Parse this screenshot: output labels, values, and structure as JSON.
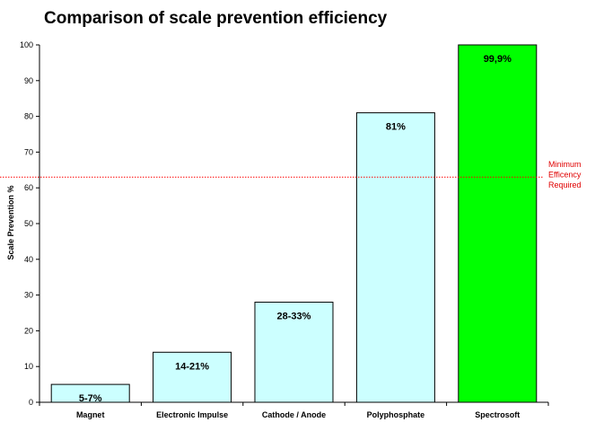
{
  "chart_data": {
    "type": "bar",
    "title": "Comparison of scale prevention efficiency",
    "xlabel": "",
    "ylabel": "Scale Prevention %",
    "ylim": [
      0,
      100
    ],
    "yticks": [
      0,
      10,
      20,
      30,
      40,
      50,
      60,
      70,
      80,
      90,
      100
    ],
    "categories": [
      "Magnet",
      "Electronic Impulse",
      "Cathode / Anode",
      "Polyphosphate",
      "Spectrosoft"
    ],
    "values": [
      5,
      14,
      28,
      81,
      100
    ],
    "data_labels": [
      "5-7%",
      "14-21%",
      "28-33%",
      "81%",
      "99,9%"
    ],
    "bar_colors": [
      "#ccffff",
      "#ccffff",
      "#ccffff",
      "#ccffff",
      "#00ff00"
    ],
    "grid": false,
    "reference_line": {
      "value": 63,
      "color": "#ff0000",
      "style": "dotted",
      "label_lines": [
        "Minimum",
        "Efficency",
        "Required"
      ]
    }
  }
}
